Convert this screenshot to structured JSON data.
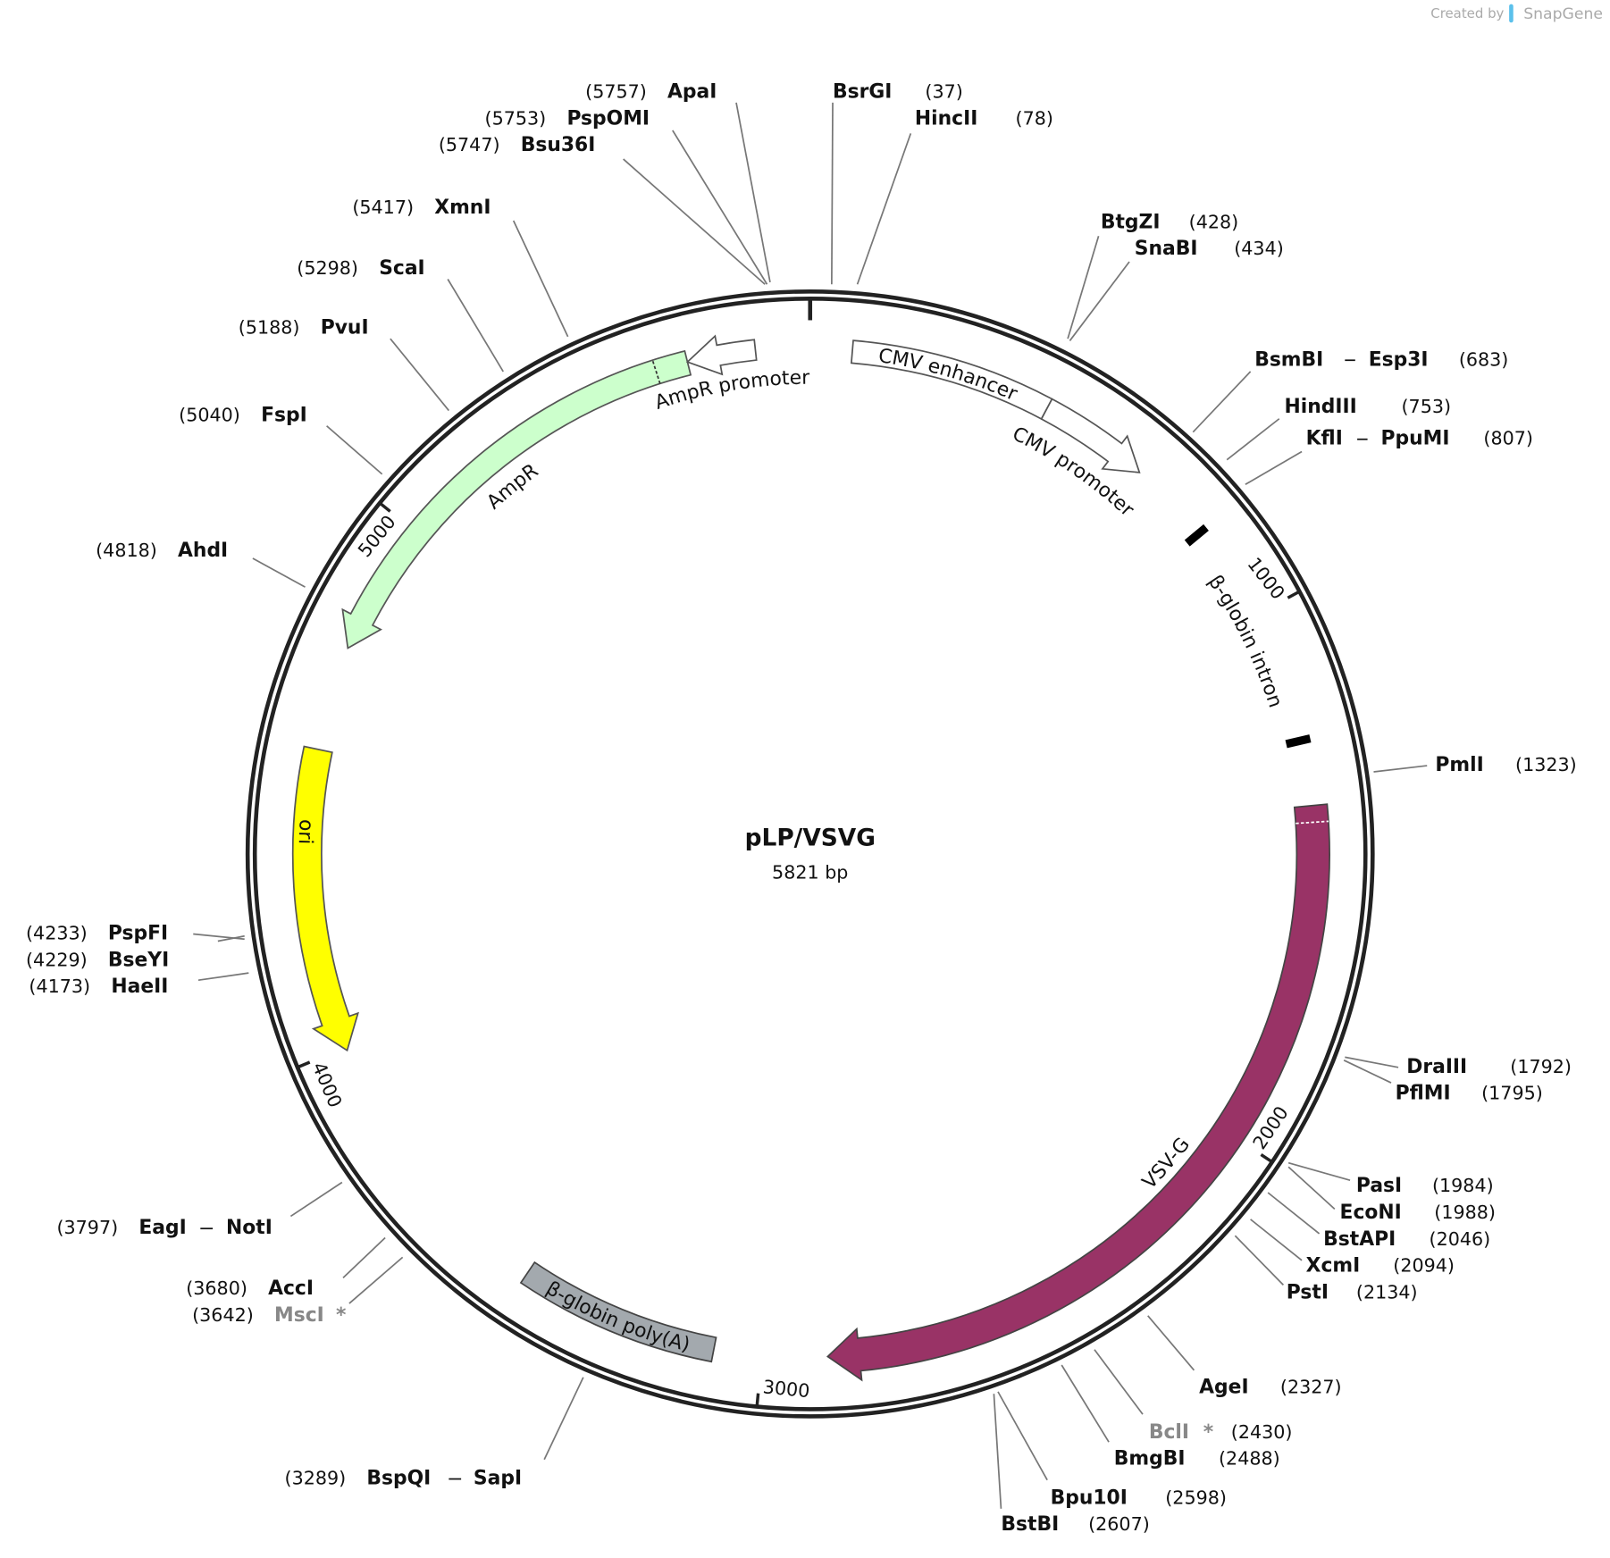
{
  "watermark": {
    "prefix": "Created by",
    "brand": "SnapGene"
  },
  "map": {
    "name": "pLP/VSVG",
    "length": "5821 bp",
    "ticks": [
      1000,
      2000,
      3000,
      4000,
      5000
    ],
    "features": [
      {
        "label": "CMV enhancer"
      },
      {
        "label": "CMV promoter"
      },
      {
        "label": "β-globin intron"
      },
      {
        "label": "VSV-G"
      },
      {
        "label": "β-globin poly(A)"
      },
      {
        "label": "ori"
      },
      {
        "label": "AmpR"
      },
      {
        "label": "AmpR promoter"
      }
    ],
    "sites": [
      {
        "names": [
          "ApaI"
        ],
        "position": "(5757)"
      },
      {
        "names": [
          "PspOMI"
        ],
        "position": "(5753)"
      },
      {
        "names": [
          "Bsu36I"
        ],
        "position": "(5747)"
      },
      {
        "names": [
          "XmnI"
        ],
        "position": "(5417)"
      },
      {
        "names": [
          "ScaI"
        ],
        "position": "(5298)"
      },
      {
        "names": [
          "PvuI"
        ],
        "position": "(5188)"
      },
      {
        "names": [
          "FspI"
        ],
        "position": "(5040)"
      },
      {
        "names": [
          "AhdI"
        ],
        "position": "(4818)"
      },
      {
        "names": [
          "PspFI"
        ],
        "position": "(4233)"
      },
      {
        "names": [
          "BseYI"
        ],
        "position": "(4229)"
      },
      {
        "names": [
          "HaeII"
        ],
        "position": "(4173)"
      },
      {
        "names": [
          "EagI",
          "NotI"
        ],
        "position": "(3797)"
      },
      {
        "names": [
          "AccI"
        ],
        "position": "(3680)"
      },
      {
        "names": [
          "MscI"
        ],
        "position": "(3642)",
        "mark": "*"
      },
      {
        "names": [
          "BspQI",
          "SapI"
        ],
        "position": "(3289)"
      },
      {
        "names": [
          "BsrGI"
        ],
        "position": "(37)"
      },
      {
        "names": [
          "HincII"
        ],
        "position": "(78)"
      },
      {
        "names": [
          "BtgZI"
        ],
        "position": "(428)"
      },
      {
        "names": [
          "SnaBI"
        ],
        "position": "(434)"
      },
      {
        "names": [
          "BsmBI",
          "Esp3I"
        ],
        "position": "(683)"
      },
      {
        "names": [
          "HindIII"
        ],
        "position": "(753)"
      },
      {
        "names": [
          "KflI",
          "PpuMI"
        ],
        "position": "(807)"
      },
      {
        "names": [
          "PmlI"
        ],
        "position": "(1323)"
      },
      {
        "names": [
          "DraIII"
        ],
        "position": "(1792)"
      },
      {
        "names": [
          "PflMI"
        ],
        "position": "(1795)"
      },
      {
        "names": [
          "PasI"
        ],
        "position": "(1984)"
      },
      {
        "names": [
          "EcoNI"
        ],
        "position": "(1988)"
      },
      {
        "names": [
          "BstAPI"
        ],
        "position": "(2046)"
      },
      {
        "names": [
          "XcmI"
        ],
        "position": "(2094)"
      },
      {
        "names": [
          "PstI"
        ],
        "position": "(2134)"
      },
      {
        "names": [
          "AgeI"
        ],
        "position": "(2327)"
      },
      {
        "names": [
          "BclI"
        ],
        "position": "(2430)",
        "mark": "*"
      },
      {
        "names": [
          "BmgBI"
        ],
        "position": "(2488)"
      },
      {
        "names": [
          "Bpu10I"
        ],
        "position": "(2598)"
      },
      {
        "names": [
          "BstBI"
        ],
        "position": "(2607)"
      }
    ]
  }
}
